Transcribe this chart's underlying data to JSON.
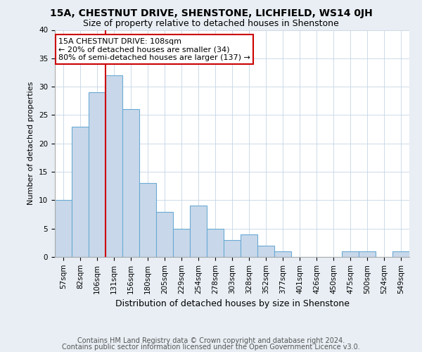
{
  "title": "15A, CHESTNUT DRIVE, SHENSTONE, LICHFIELD, WS14 0JH",
  "subtitle": "Size of property relative to detached houses in Shenstone",
  "xlabel": "Distribution of detached houses by size in Shenstone",
  "ylabel": "Number of detached properties",
  "footnote1": "Contains HM Land Registry data © Crown copyright and database right 2024.",
  "footnote2": "Contains public sector information licensed under the Open Government Licence v3.0.",
  "bins": [
    "57sqm",
    "82sqm",
    "106sqm",
    "131sqm",
    "156sqm",
    "180sqm",
    "205sqm",
    "229sqm",
    "254sqm",
    "278sqm",
    "303sqm",
    "328sqm",
    "352sqm",
    "377sqm",
    "401sqm",
    "426sqm",
    "450sqm",
    "475sqm",
    "500sqm",
    "524sqm",
    "549sqm"
  ],
  "values": [
    10,
    23,
    29,
    32,
    26,
    13,
    8,
    5,
    9,
    5,
    3,
    4,
    2,
    1,
    0,
    0,
    0,
    1,
    1,
    0,
    1
  ],
  "bar_color": "#c8d8ea",
  "bar_edge_color": "#6aaad4",
  "red_line_bin_index": 2,
  "red_line_color": "#cc0000",
  "annotation_line1": "15A CHESTNUT DRIVE: 108sqm",
  "annotation_line2": "← 20% of detached houses are smaller (34)",
  "annotation_line3": "80% of semi-detached houses are larger (137) →",
  "annotation_box_facecolor": "white",
  "annotation_box_edgecolor": "#cc0000",
  "ylim": [
    0,
    40
  ],
  "yticks": [
    0,
    5,
    10,
    15,
    20,
    25,
    30,
    35,
    40
  ],
  "background_color": "#e8eef4",
  "plot_bg_color": "white",
  "grid_color": "#c5d5e5",
  "title_fontsize": 10,
  "subtitle_fontsize": 9,
  "ylabel_fontsize": 8,
  "xlabel_fontsize": 9,
  "tick_fontsize": 7.5,
  "footnote_fontsize": 7,
  "annotation_fontsize": 8
}
